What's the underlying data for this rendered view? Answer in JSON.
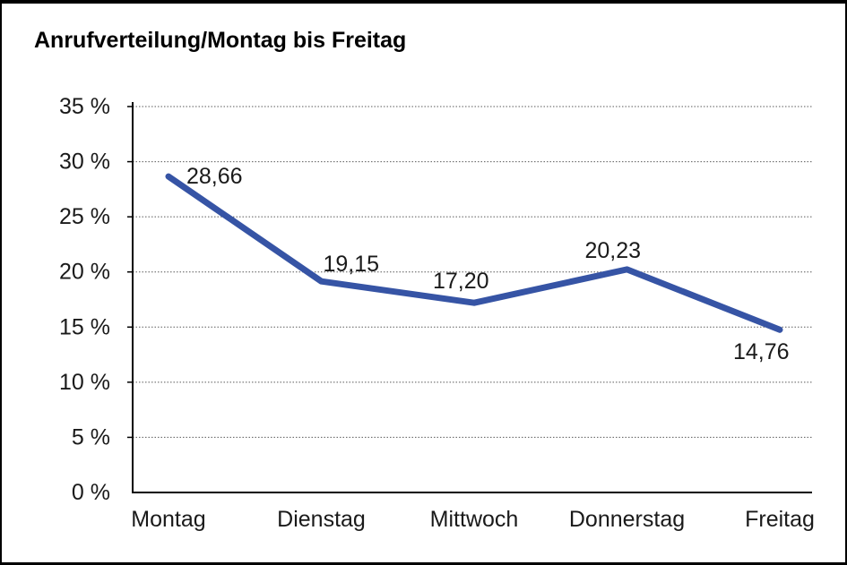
{
  "page": {
    "background": "#ffffff",
    "border_color": "#000000"
  },
  "chart_data": {
    "type": "line",
    "title": "Anrufverteilung/Montag bis Freitag",
    "categories": [
      "Montag",
      "Dienstag",
      "Mittwoch",
      "Donnerstag",
      "Freitag"
    ],
    "series": [
      {
        "name": "Anrufverteilung",
        "values": [
          28.66,
          19.15,
          17.2,
          20.23,
          14.76
        ]
      }
    ],
    "point_labels": [
      "28,66",
      "19,15",
      "17,20",
      "20,23",
      "14,76"
    ],
    "ytick_labels": [
      "0 %",
      "5 %",
      "10 %",
      "15 %",
      "20 %",
      "25 %",
      "30 %",
      "35 %"
    ],
    "ylim": [
      0,
      35
    ],
    "ytick_step": 5,
    "xlabel": "",
    "ylabel": "",
    "grid": "horizontal-dotted",
    "legend": "none",
    "colors": {
      "line": "#3654A5",
      "grid": "#5a5a5a",
      "axis": "#000000",
      "tick_label": "#1a1a1a",
      "data_label": "#1a1a1a",
      "title": "#000000"
    }
  }
}
